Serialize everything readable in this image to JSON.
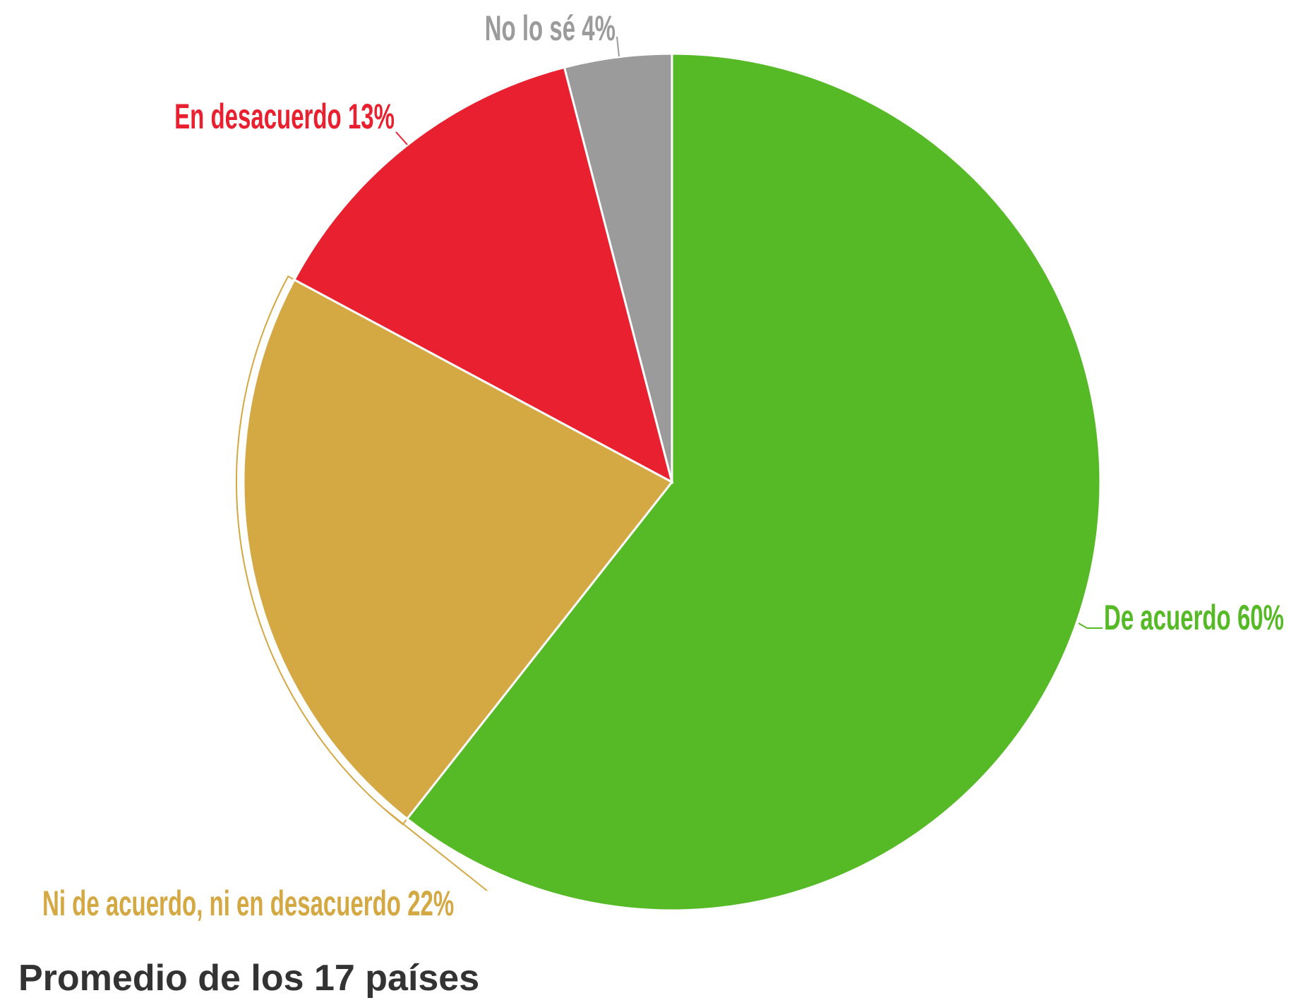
{
  "chart_data": {
    "type": "pie",
    "title": "Promedio de los 17 países",
    "categories": [
      "De acuerdo",
      "Ni de acuerdo, ni en desacuerdo",
      "En desacuerdo",
      "No lo sé"
    ],
    "values": [
      60,
      22,
      13,
      4
    ],
    "value_labels": [
      "60%",
      "22%",
      "13%",
      "4%"
    ],
    "colors": [
      "#56b926",
      "#d4a843",
      "#e8202f",
      "#9b9b9b"
    ]
  }
}
